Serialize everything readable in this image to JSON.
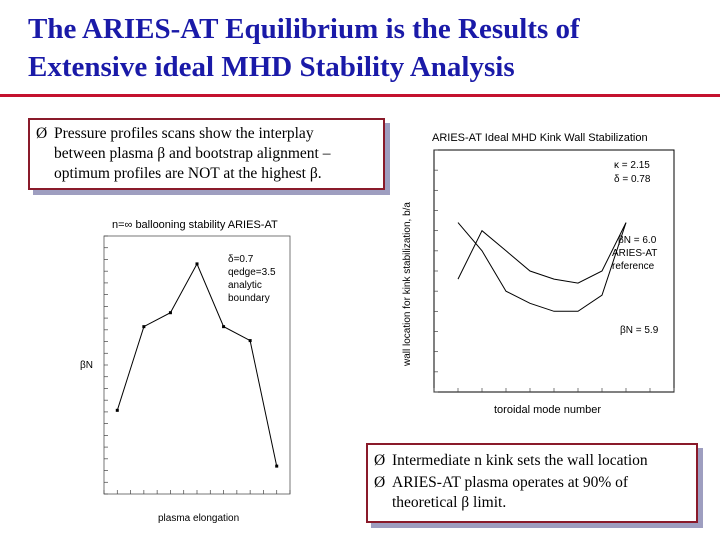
{
  "slide": {
    "title_line1": "The ARIES-AT Equilibrium is the Results of",
    "title_line2": "Extensive ideal MHD Stability Analysis",
    "accent_color": "#1a1aa8",
    "rule_color": "#c4122e"
  },
  "box1": {
    "arrow": "Ø",
    "line1": "Pressure profiles scans show the interplay",
    "line2": "between plasma β and bootstrap alignment –",
    "line3": "optimum profiles are NOT at the highest β."
  },
  "box2": {
    "arrow1": "Ø",
    "bullet1": "Intermediate n kink sets the wall location",
    "arrow2": "Ø",
    "bullet2_line1": "ARIES-AT plasma operates at 90% of",
    "bullet2_line2": "theoretical β limit."
  },
  "chart_data": [
    {
      "type": "line",
      "title": "n=∞ ballooning stability ARIES-AT",
      "xlabel": "plasma elongation",
      "ylabel": "βN",
      "annotations": [
        "δ=0.7",
        "qedge=3.5",
        "analytic",
        "boundary"
      ],
      "series": [
        {
          "x": [
            1.6,
            1.8,
            2.0,
            2.2,
            2.4,
            2.6,
            2.8
          ],
          "y": [
            5.4,
            6.6,
            6.8,
            7.5,
            6.6,
            6.4,
            4.6
          ]
        }
      ],
      "xlim": [
        1.5,
        2.9
      ],
      "ylim": [
        4.2,
        7.9
      ]
    },
    {
      "type": "line",
      "title": "ARIES-AT Ideal MHD Kink Wall Stabilization",
      "xlabel": "toroidal mode number",
      "ylabel": "wall location for kink stabilization, b/a",
      "annotations": [
        "κ = 2.15",
        "δ = 0.78",
        "βN = 6.0",
        "ARIES-AT",
        "reference",
        "βN = 5.9"
      ],
      "series": [
        {
          "name": "βN = 6.0",
          "x": [
            1,
            2,
            3,
            4,
            5,
            6,
            7,
            8
          ],
          "y": [
            1.28,
            1.4,
            1.35,
            1.3,
            1.28,
            1.27,
            1.3,
            1.42
          ]
        },
        {
          "name": "βN = 5.9",
          "x": [
            1,
            2,
            3,
            4,
            5,
            6,
            7,
            8
          ],
          "y": [
            1.42,
            1.35,
            1.25,
            1.22,
            1.2,
            1.2,
            1.24,
            1.42
          ]
        }
      ],
      "xlim": [
        0,
        10
      ],
      "ylim": [
        1.0,
        1.6
      ]
    }
  ]
}
